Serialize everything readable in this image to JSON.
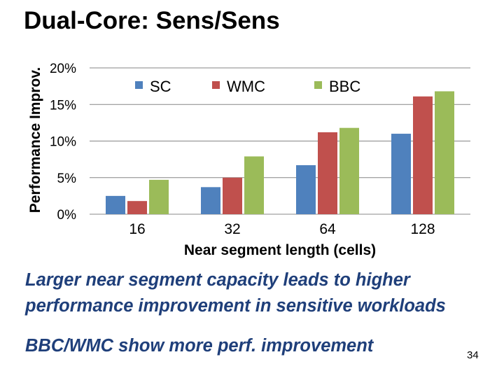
{
  "slide": {
    "title": "Dual-Core: Sens/Sens",
    "notes": [
      "Larger near segment capacity leads to higher",
      "performance improvement in sensitive workloads",
      "BBC/WMC show more perf. improvement"
    ],
    "page_number": "34"
  },
  "chart_data": {
    "type": "bar",
    "title": "",
    "xlabel": "Near segment length (cells)",
    "ylabel": "Performance Improv.",
    "categories": [
      "16",
      "32",
      "64",
      "128"
    ],
    "series": [
      {
        "name": "SC",
        "color": "#4f81bd",
        "values": [
          2.5,
          3.7,
          6.7,
          11.0
        ]
      },
      {
        "name": "WMC",
        "color": "#c0504d",
        "values": [
          1.8,
          5.0,
          11.2,
          16.1
        ]
      },
      {
        "name": "BBC",
        "color": "#9bbb59",
        "values": [
          4.7,
          7.9,
          11.8,
          16.8
        ]
      }
    ],
    "ylim": [
      0,
      20
    ],
    "yticks": [
      "0%",
      "5%",
      "10%",
      "15%",
      "20%"
    ],
    "ytick_values": [
      0,
      5,
      10,
      15,
      20
    ],
    "grid": true,
    "legend_position": "top"
  }
}
